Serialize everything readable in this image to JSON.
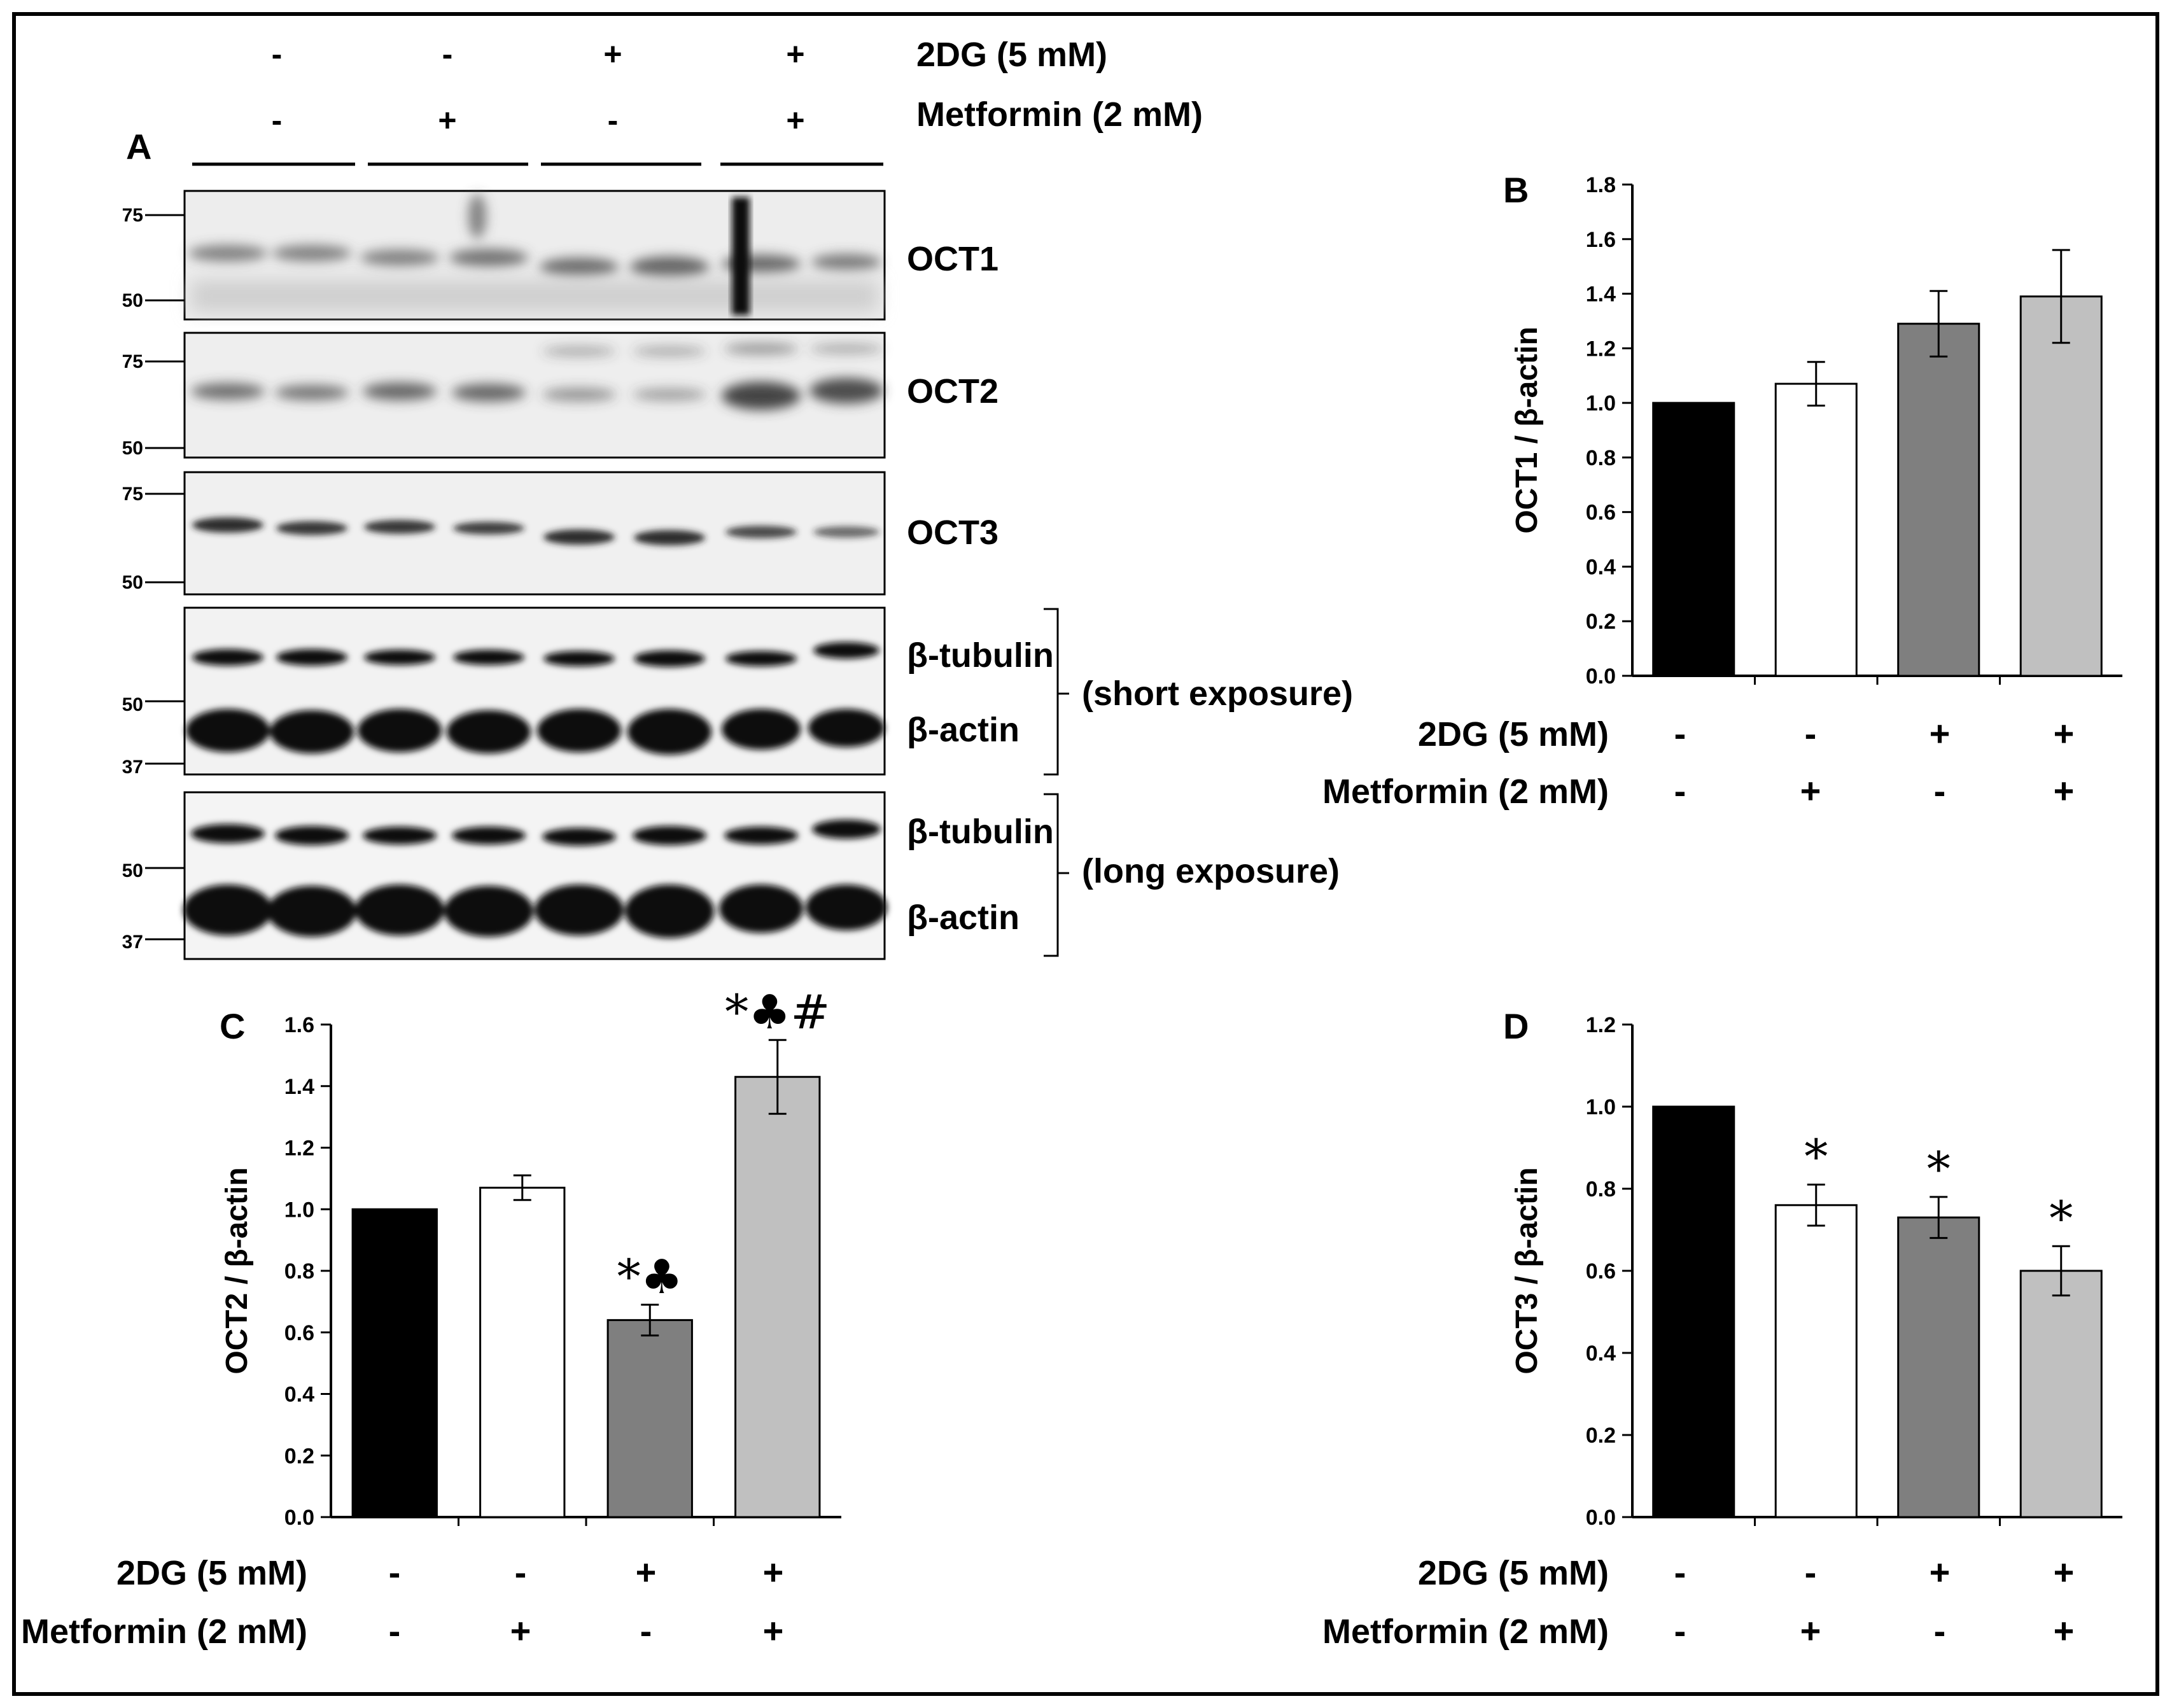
{
  "western_blot": {
    "panel_letter": "A",
    "header_rows": [
      {
        "label": "2DG (5 mM)",
        "values": [
          "-",
          "-",
          "+",
          "+"
        ]
      },
      {
        "label": "Metformin (2 mM)",
        "values": [
          "-",
          "+",
          "-",
          "+"
        ]
      }
    ],
    "blots": [
      {
        "bands": [
          "OCT1"
        ],
        "markers": [
          "75",
          "50"
        ]
      },
      {
        "bands": [
          "OCT2"
        ],
        "markers": [
          "75",
          "50"
        ]
      },
      {
        "bands": [
          "OCT3"
        ],
        "markers": [
          "75",
          "50"
        ]
      },
      {
        "bands": [
          "β-tubulin",
          "β-actin"
        ],
        "markers": [
          "50",
          "37"
        ],
        "exposure": "(short exposure)"
      },
      {
        "bands": [
          "β-tubulin",
          "β-actin"
        ],
        "markers": [
          "50",
          "37"
        ],
        "exposure": "(long exposure)"
      }
    ]
  },
  "colors": {
    "bar_control": "#000000",
    "bar_metformin": "#ffffff",
    "bar_2dg": "#7f7f7f",
    "bar_combo": "#c0c0c0"
  },
  "chart_data": [
    {
      "panel_letter": "B",
      "type": "bar",
      "ylabel": "OCT1 / β-actin",
      "ylim": [
        0,
        1.8
      ],
      "yticks": [
        "0.0",
        "0.2",
        "0.4",
        "0.6",
        "0.8",
        "1.0",
        "1.2",
        "1.4",
        "1.6",
        "1.8"
      ],
      "values": [
        1.0,
        1.07,
        1.29,
        1.39
      ],
      "errors": [
        0,
        0.08,
        0.12,
        0.17
      ],
      "annotations": [
        "",
        "",
        "",
        ""
      ],
      "conditions": [
        {
          "label": "2DG (5 mM)",
          "values": [
            "-",
            "-",
            "+",
            "+"
          ]
        },
        {
          "label": "Metformin (2 mM)",
          "values": [
            "-",
            "+",
            "-",
            "+"
          ]
        }
      ]
    },
    {
      "panel_letter": "C",
      "type": "bar",
      "ylabel": "OCT2 / β-actin",
      "ylim": [
        0,
        1.6
      ],
      "yticks": [
        "0.0",
        "0.2",
        "0.4",
        "0.6",
        "0.8",
        "1.0",
        "1.2",
        "1.4",
        "1.6"
      ],
      "values": [
        1.0,
        1.07,
        0.64,
        1.43
      ],
      "errors": [
        0,
        0.04,
        0.05,
        0.12
      ],
      "annotations": [
        "",
        "",
        "*♣",
        "*♣#"
      ],
      "conditions": [
        {
          "label": "2DG (5 mM)",
          "values": [
            "-",
            "-",
            "+",
            "+"
          ]
        },
        {
          "label": "Metformin (2 mM)",
          "values": [
            "-",
            "+",
            "-",
            "+"
          ]
        }
      ]
    },
    {
      "panel_letter": "D",
      "type": "bar",
      "ylabel": "OCT3 / β-actin",
      "ylim": [
        0,
        1.2
      ],
      "yticks": [
        "0.0",
        "0.2",
        "0.4",
        "0.6",
        "0.8",
        "1.0",
        "1.2"
      ],
      "values": [
        1.0,
        0.76,
        0.73,
        0.6
      ],
      "errors": [
        0,
        0.05,
        0.05,
        0.06
      ],
      "annotations": [
        "",
        "*",
        "*",
        "*"
      ],
      "conditions": [
        {
          "label": "2DG (5 mM)",
          "values": [
            "-",
            "-",
            "+",
            "+"
          ]
        },
        {
          "label": "Metformin (2 mM)",
          "values": [
            "-",
            "+",
            "-",
            "+"
          ]
        }
      ]
    }
  ]
}
